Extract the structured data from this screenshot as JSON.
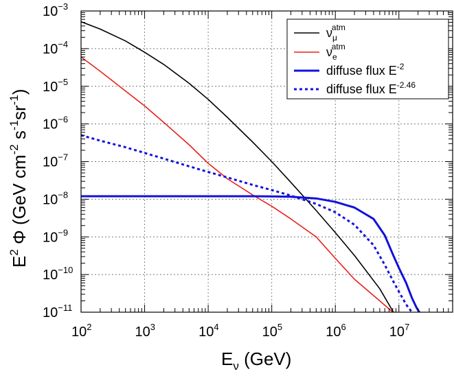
{
  "chart_data": {
    "type": "line",
    "xlabel": "E",
    "xlabel_sub": "ν",
    "xlabel_unit": " (GeV)",
    "ylabel_parts": [
      {
        "t": "E",
        "sup": false
      },
      {
        "t": "2",
        "sup": true
      },
      {
        "t": " Φ (GeV cm",
        "sup": false
      },
      {
        "t": "-2",
        "sup": true
      },
      {
        "t": " s",
        "sup": false
      },
      {
        "t": "-1",
        "sup": true
      },
      {
        "t": "sr",
        "sup": false
      },
      {
        "t": "-1",
        "sup": true
      },
      {
        "t": ")",
        "sup": false
      }
    ],
    "log_x": true,
    "log_y": true,
    "xlim": [
      100,
      70000000
    ],
    "ylim": [
      1e-11,
      0.001
    ],
    "grid": true,
    "legend_position": "top-right",
    "x_ticks": [
      {
        "value": 100,
        "base": "10",
        "exp": "2"
      },
      {
        "value": 1000,
        "base": "10",
        "exp": "3"
      },
      {
        "value": 10000,
        "base": "10",
        "exp": "4"
      },
      {
        "value": 100000,
        "base": "10",
        "exp": "5"
      },
      {
        "value": 1000000,
        "base": "10",
        "exp": "6"
      },
      {
        "value": 10000000,
        "base": "10",
        "exp": "7"
      }
    ],
    "y_ticks": [
      {
        "value": 1e-11,
        "base": "10",
        "exp": "−11"
      },
      {
        "value": 1e-10,
        "base": "10",
        "exp": "−10"
      },
      {
        "value": 1e-09,
        "base": "10",
        "exp": "−9"
      },
      {
        "value": 1e-08,
        "base": "10",
        "exp": "−8"
      },
      {
        "value": 1e-07,
        "base": "10",
        "exp": "−7"
      },
      {
        "value": 1e-06,
        "base": "10",
        "exp": "−6"
      },
      {
        "value": 1e-05,
        "base": "10",
        "exp": "−5"
      },
      {
        "value": 0.0001,
        "base": "10",
        "exp": "−4"
      },
      {
        "value": 0.001,
        "base": "10",
        "exp": "−3"
      }
    ],
    "series": [
      {
        "key": "numu-atm",
        "label_main": "ν",
        "label_sub": "μ",
        "label_sup": "atm",
        "color": "#000000",
        "style": "solid",
        "width": 1.6,
        "points": [
          [
            100,
            0.00052
          ],
          [
            200,
            0.00033
          ],
          [
            500,
            0.00016
          ],
          [
            1000,
            8e-05
          ],
          [
            2000,
            3.8e-05
          ],
          [
            5000,
            1.2e-05
          ],
          [
            10000,
            4.5e-06
          ],
          [
            20000,
            1.5e-06
          ],
          [
            50000,
            3.3e-07
          ],
          [
            100000,
            1e-07
          ],
          [
            200000,
            2.8e-08
          ],
          [
            500000,
            5e-09
          ],
          [
            1000000,
            1.3e-09
          ],
          [
            2000000,
            3.2e-10
          ],
          [
            5000000,
            4.2e-11
          ],
          [
            8200000,
            1e-11
          ]
        ]
      },
      {
        "key": "nue-atm",
        "label_main": "ν",
        "label_sub": "e",
        "label_sup": "atm",
        "color": "#e8211c",
        "style": "solid",
        "width": 1.6,
        "points": [
          [
            100,
            6e-05
          ],
          [
            200,
            2.5e-05
          ],
          [
            500,
            7.5e-06
          ],
          [
            1000,
            3e-06
          ],
          [
            2000,
            1.1e-06
          ],
          [
            5000,
            2.8e-07
          ],
          [
            10000,
            9e-08
          ],
          [
            20000,
            3.5e-08
          ],
          [
            50000,
            1.3e-08
          ],
          [
            100000,
            6.5e-09
          ],
          [
            200000,
            3e-09
          ],
          [
            500000,
            1e-09
          ],
          [
            1000000,
            2.7e-10
          ],
          [
            2000000,
            7.5e-11
          ],
          [
            5000000,
            2e-11
          ],
          [
            8000000,
            1e-11
          ]
        ]
      },
      {
        "key": "diffuse-e2",
        "label_main": "diffuse flux E",
        "label_sup": "-2",
        "color": "#1111dd",
        "style": "solid",
        "width": 3,
        "points": [
          [
            100,
            1.2e-08
          ],
          [
            1000,
            1.2e-08
          ],
          [
            10000,
            1.2e-08
          ],
          [
            50000,
            1.2e-08
          ],
          [
            100000,
            1.19e-08
          ],
          [
            200000,
            1.16e-08
          ],
          [
            500000,
            1.05e-08
          ],
          [
            1000000,
            8.5e-09
          ],
          [
            2000000,
            6e-09
          ],
          [
            4000000,
            3e-09
          ],
          [
            6000000,
            1.1e-09
          ],
          [
            8000000,
            3.5e-10
          ],
          [
            10000000,
            1.5e-10
          ],
          [
            13000000,
            6e-11
          ],
          [
            16000000,
            2.4e-11
          ],
          [
            19000000,
            1.3e-11
          ],
          [
            21000000,
            1e-11
          ]
        ]
      },
      {
        "key": "diffuse-e246",
        "label_main": "diffuse flux E",
        "label_sup": "-2.46",
        "color": "#1111dd",
        "style": "dotted",
        "width": 3,
        "points": [
          [
            100,
            5e-07
          ],
          [
            200,
            3.6e-07
          ],
          [
            500,
            2.4e-07
          ],
          [
            1000,
            1.7e-07
          ],
          [
            2000,
            1.2e-07
          ],
          [
            5000,
            7.5e-08
          ],
          [
            10000,
            5.3e-08
          ],
          [
            20000,
            3.8e-08
          ],
          [
            50000,
            2.4e-08
          ],
          [
            100000,
            1.75e-08
          ],
          [
            200000,
            1.25e-08
          ],
          [
            500000,
            7.5e-09
          ],
          [
            1000000,
            4.5e-09
          ],
          [
            2000000,
            2.1e-09
          ],
          [
            4000000,
            6e-10
          ],
          [
            6000000,
            1.8e-10
          ],
          [
            8000000,
            7e-11
          ],
          [
            10000000,
            3.5e-11
          ],
          [
            13000000,
            1.6e-11
          ],
          [
            16000000,
            1e-11
          ]
        ]
      }
    ]
  }
}
